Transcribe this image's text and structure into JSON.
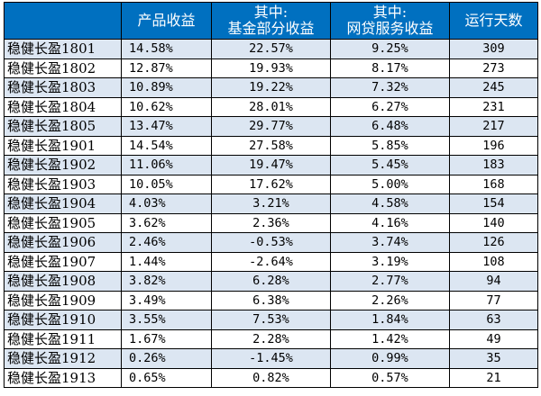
{
  "chart_data": {
    "type": "table",
    "columns": [
      {
        "key": "name",
        "label_lines": [
          ""
        ]
      },
      {
        "key": "product",
        "label_lines": [
          "产品收益"
        ]
      },
      {
        "key": "fund",
        "label_lines": [
          "其中:",
          "基金部分收益"
        ]
      },
      {
        "key": "p2p",
        "label_lines": [
          "其中:",
          "网贷服务收益"
        ]
      },
      {
        "key": "days",
        "label_lines": [
          "运行天数"
        ]
      }
    ],
    "rows": [
      {
        "name": "稳健长盈1801",
        "product": "14.58%",
        "fund": "22.57%",
        "p2p": "9.25%",
        "days": "309"
      },
      {
        "name": "稳健长盈1802",
        "product": "12.87%",
        "fund": "19.93%",
        "p2p": "8.17%",
        "days": "273"
      },
      {
        "name": "稳健长盈1803",
        "product": "10.89%",
        "fund": "19.22%",
        "p2p": "7.32%",
        "days": "245"
      },
      {
        "name": "稳健长盈1804",
        "product": "10.62%",
        "fund": "28.01%",
        "p2p": "6.27%",
        "days": "231"
      },
      {
        "name": "稳健长盈1805",
        "product": "13.47%",
        "fund": "29.77%",
        "p2p": "6.48%",
        "days": "217"
      },
      {
        "name": "稳健长盈1901",
        "product": "14.54%",
        "fund": "27.58%",
        "p2p": "5.85%",
        "days": "196"
      },
      {
        "name": "稳健长盈1902",
        "product": "11.06%",
        "fund": "19.47%",
        "p2p": "5.45%",
        "days": "183"
      },
      {
        "name": "稳健长盈1903",
        "product": "10.05%",
        "fund": "17.62%",
        "p2p": "5.00%",
        "days": "168"
      },
      {
        "name": "稳健长盈1904",
        "product": "4.03%",
        "fund": "3.21%",
        "p2p": "4.58%",
        "days": "154"
      },
      {
        "name": "稳健长盈1905",
        "product": "3.62%",
        "fund": "2.36%",
        "p2p": "4.16%",
        "days": "140"
      },
      {
        "name": "稳健长盈1906",
        "product": "2.46%",
        "fund": "-0.53%",
        "p2p": "3.74%",
        "days": "126"
      },
      {
        "name": "稳健长盈1907",
        "product": "1.44%",
        "fund": "-2.64%",
        "p2p": "3.19%",
        "days": "108"
      },
      {
        "name": "稳健长盈1908",
        "product": "3.82%",
        "fund": "6.28%",
        "p2p": "2.77%",
        "days": "94"
      },
      {
        "name": "稳健长盈1909",
        "product": "3.49%",
        "fund": "6.38%",
        "p2p": "2.26%",
        "days": "77"
      },
      {
        "name": "稳健长盈1910",
        "product": "3.55%",
        "fund": "7.53%",
        "p2p": "1.84%",
        "days": "63"
      },
      {
        "name": "稳健长盈1911",
        "product": "1.67%",
        "fund": "2.28%",
        "p2p": "1.42%",
        "days": "49"
      },
      {
        "name": "稳健长盈1912",
        "product": "0.26%",
        "fund": "-1.45%",
        "p2p": "0.99%",
        "days": "35"
      },
      {
        "name": "稳健长盈1913",
        "product": "0.65%",
        "fund": "0.82%",
        "p2p": "0.57%",
        "days": "21"
      }
    ]
  },
  "colors": {
    "header_bg": "#0070c0",
    "header_text": "#ffffff",
    "row_alt_bg": "#dce6f2",
    "row_bg": "#ffffff",
    "border": "#000000"
  }
}
